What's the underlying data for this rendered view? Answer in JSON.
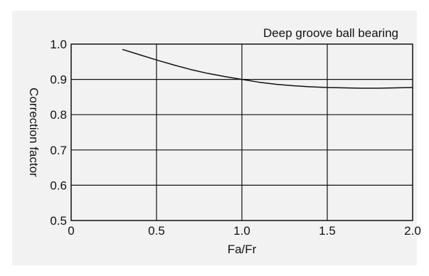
{
  "chart_data": {
    "type": "line",
    "title": "Deep groove ball bearing",
    "xlabel": "Fa/Fr",
    "ylabel": "Correction factor",
    "xlim": [
      0,
      2.0
    ],
    "ylim": [
      0.5,
      1.0
    ],
    "x_ticks": [
      0,
      0.5,
      1.0,
      1.5,
      2.0
    ],
    "x_tick_labels": [
      "0",
      "0.5",
      "1.0",
      "1.5",
      "2.0"
    ],
    "y_ticks": [
      0.5,
      0.6,
      0.7,
      0.8,
      0.9,
      1.0
    ],
    "y_tick_labels": [
      "0.5",
      "0.6",
      "0.7",
      "0.8",
      "0.9",
      "1.0"
    ],
    "grid": true,
    "series": [
      {
        "x": [
          0.3,
          0.4,
          0.5,
          0.6,
          0.7,
          0.8,
          0.9,
          1.0,
          1.1,
          1.2,
          1.3,
          1.4,
          1.5,
          1.6,
          1.7,
          1.8,
          1.9,
          2.0
        ],
        "y": [
          0.985,
          0.97,
          0.955,
          0.941,
          0.928,
          0.917,
          0.908,
          0.9,
          0.892,
          0.886,
          0.882,
          0.879,
          0.877,
          0.876,
          0.875,
          0.875,
          0.876,
          0.877
        ],
        "color": "#111111"
      }
    ]
  }
}
